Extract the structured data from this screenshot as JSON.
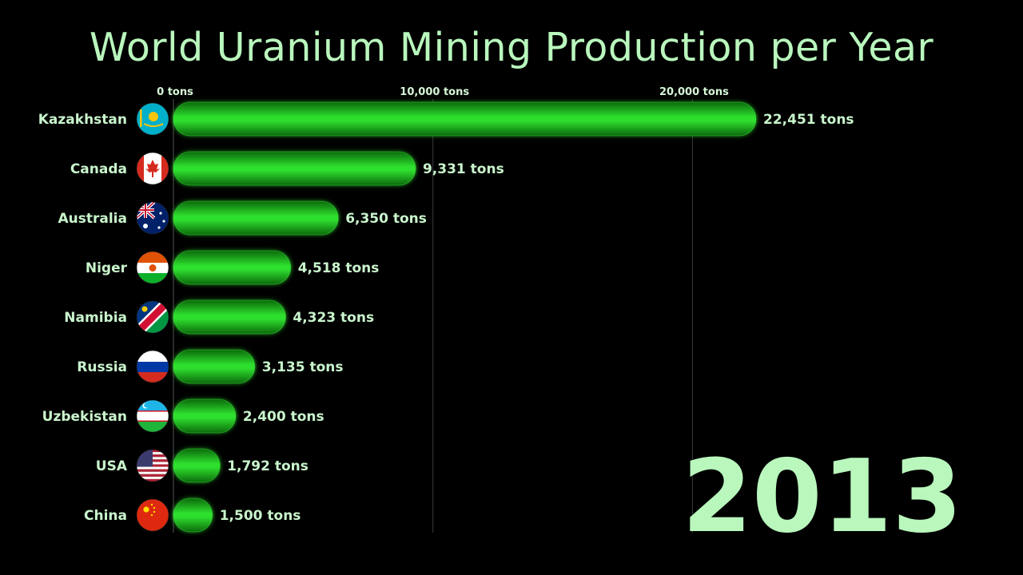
{
  "chart_data": {
    "type": "bar",
    "orientation": "horizontal",
    "title": "World Uranium Mining Production per Year",
    "period": "2013",
    "unit": "tons",
    "xlim": [
      0,
      22451
    ],
    "x_ticks": [
      {
        "value": 0,
        "label": "0 tons"
      },
      {
        "value": 10000,
        "label": "10,000 tons"
      },
      {
        "value": 20000,
        "label": "20,000 tons"
      }
    ],
    "bar_color": "#22c522",
    "categories": [
      "Kazakhstan",
      "Canada",
      "Australia",
      "Niger",
      "Namibia",
      "Russia",
      "Uzbekistan",
      "USA",
      "China"
    ],
    "values": [
      22451,
      9331,
      6350,
      4518,
      4323,
      3135,
      2400,
      1792,
      1500
    ],
    "value_labels": [
      "22,451 tons",
      "9,331 tons",
      "6,350 tons",
      "4,518 tons",
      "4,323 tons",
      "3,135 tons",
      "2,400 tons",
      "1,792 tons",
      "1,500 tons"
    ],
    "flags": [
      "kazakhstan-flag-icon",
      "canada-flag-icon",
      "australia-flag-icon",
      "niger-flag-icon",
      "namibia-flag-icon",
      "russia-flag-icon",
      "uzbekistan-flag-icon",
      "usa-flag-icon",
      "china-flag-icon"
    ],
    "grid": true,
    "legend": "none"
  }
}
